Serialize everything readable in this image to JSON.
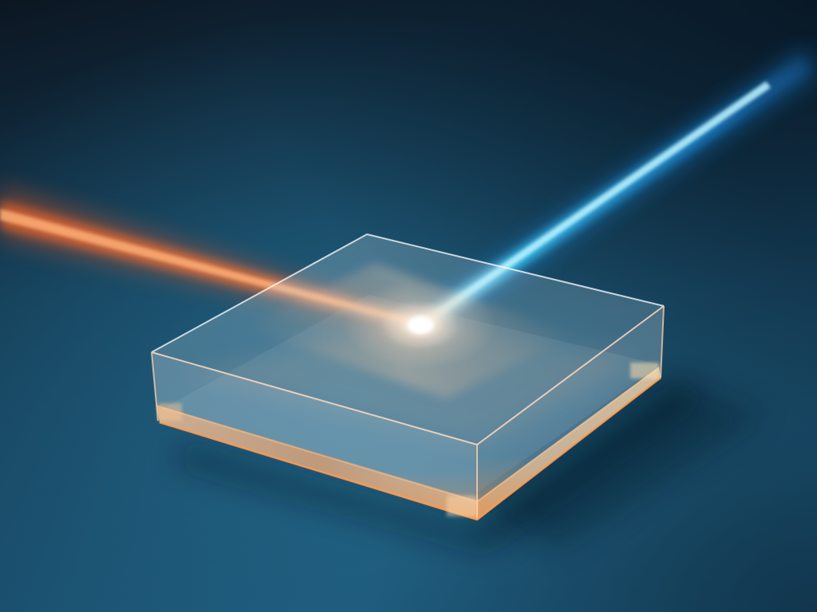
{
  "scene": {
    "description_free": true,
    "colors": {
      "background_top": "#0c1622",
      "background_mid": "#133a52",
      "background_bottom": "#1c5474",
      "surface_glow": "#2a7aa0",
      "beam_in": "#ff6a2a",
      "beam_in_core": "#ffb27a",
      "beam_out": "#1aa8ff",
      "beam_out_core": "#9af0ff",
      "glass_tint": "#cfe6f2",
      "glass_edge": "#ffd2b0",
      "glass_base": "#f08a3a",
      "impact_glow": "#ffffff",
      "shadow": "#061320"
    },
    "elements": {
      "incoming_beam": "orange-laser-beam",
      "outgoing_beam": "blue-laser-beam",
      "slab": "transparent-glass-slab",
      "impact_point": "light-impact-flare"
    }
  }
}
